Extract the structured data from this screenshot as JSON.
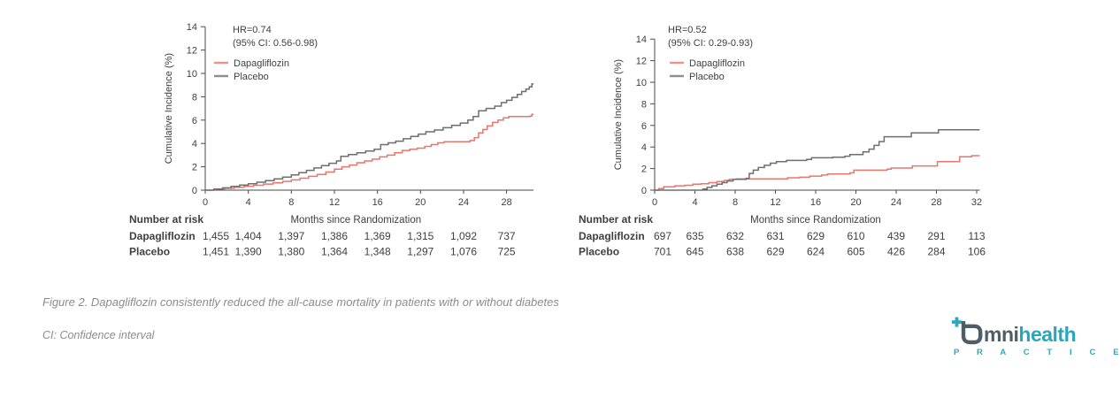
{
  "caption": "Figure 2. Dapagliflozin consistently reduced the all-cause mortality in patients with or without diabetes",
  "footnote": "CI: Confidence interval",
  "logo": {
    "plus_icon": "plus-icon",
    "o_mark_icon": "omni-o-mark-icon",
    "brand_prefix": "mni",
    "brand_suffix": "health",
    "subtext": "P R A C T I C E",
    "dark_color": "#4e5d66",
    "teal_color": "#29a7b7"
  },
  "colors": {
    "axis": "#4a4a4a",
    "text_dark": "#3f3f3f",
    "series_red": "#e7766d",
    "series_gray": "#6e6e6e",
    "legend_red": "#f0928a",
    "legend_gray": "#8d8d8d",
    "caption_gray": "#8c8c8c"
  },
  "chart_data": [
    {
      "type": "line",
      "step": true,
      "hr_text": "HR=0.74",
      "ci_text": "(95% CI: 0.56-0.98)",
      "ylabel": "Cumulative Incidence (%)",
      "xlabel": "Months since Randomization",
      "yticks": [
        0,
        2,
        4,
        6,
        8,
        10,
        12,
        14
      ],
      "xticks": [
        0,
        4,
        8,
        12,
        16,
        20,
        24,
        28
      ],
      "ylim": [
        0,
        14
      ],
      "xlim": [
        0,
        30.5
      ],
      "grid": false,
      "legend_position": "upper-left",
      "series": [
        {
          "name": "Dapagliflozin",
          "color": "#e7766d",
          "points": [
            [
              0,
              0
            ],
            [
              0.9,
              0.08
            ],
            [
              1.8,
              0.16
            ],
            [
              2.7,
              0.25
            ],
            [
              3.6,
              0.33
            ],
            [
              4.5,
              0.42
            ],
            [
              5.4,
              0.52
            ],
            [
              6.3,
              0.63
            ],
            [
              7.2,
              0.75
            ],
            [
              8,
              0.88
            ],
            [
              8.8,
              1.02
            ],
            [
              9.6,
              1.18
            ],
            [
              10.4,
              1.35
            ],
            [
              11.2,
              1.55
            ],
            [
              12,
              1.8
            ],
            [
              12.7,
              2.0
            ],
            [
              13.4,
              2.15
            ],
            [
              14.1,
              2.35
            ],
            [
              14.8,
              2.5
            ],
            [
              15.5,
              2.65
            ],
            [
              16.2,
              2.85
            ],
            [
              16.9,
              3.0
            ],
            [
              17.6,
              3.2
            ],
            [
              18.3,
              3.4
            ],
            [
              19,
              3.5
            ],
            [
              19.7,
              3.6
            ],
            [
              20.4,
              3.75
            ],
            [
              21,
              3.9
            ],
            [
              21.6,
              4.05
            ],
            [
              22.2,
              4.15
            ],
            [
              24.6,
              4.25
            ],
            [
              25,
              4.5
            ],
            [
              25.4,
              4.9
            ],
            [
              25.8,
              5.2
            ],
            [
              26.2,
              5.5
            ],
            [
              26.7,
              5.8
            ],
            [
              27.2,
              6.0
            ],
            [
              27.7,
              6.2
            ],
            [
              28.2,
              6.3
            ],
            [
              30.2,
              6.35
            ],
            [
              30.35,
              6.5
            ]
          ]
        },
        {
          "name": "Placebo",
          "color": "#6e6e6e",
          "points": [
            [
              0,
              0
            ],
            [
              0.8,
              0.1
            ],
            [
              1.6,
              0.2
            ],
            [
              2.4,
              0.32
            ],
            [
              3.2,
              0.44
            ],
            [
              4,
              0.55
            ],
            [
              4.8,
              0.68
            ],
            [
              5.6,
              0.82
            ],
            [
              6.4,
              0.97
            ],
            [
              7.2,
              1.12
            ],
            [
              8,
              1.3
            ],
            [
              8.7,
              1.5
            ],
            [
              9.4,
              1.7
            ],
            [
              10.1,
              1.9
            ],
            [
              10.8,
              2.1
            ],
            [
              11.5,
              2.3
            ],
            [
              12.2,
              2.5
            ],
            [
              12.6,
              2.9
            ],
            [
              13.3,
              3.05
            ],
            [
              14.1,
              3.2
            ],
            [
              14.9,
              3.35
            ],
            [
              15.7,
              3.5
            ],
            [
              16.3,
              3.9
            ],
            [
              17,
              4.05
            ],
            [
              17.7,
              4.2
            ],
            [
              18.4,
              4.4
            ],
            [
              19.1,
              4.6
            ],
            [
              19.8,
              4.8
            ],
            [
              20.5,
              5.0
            ],
            [
              21.3,
              5.15
            ],
            [
              22.1,
              5.35
            ],
            [
              22.9,
              5.55
            ],
            [
              23.7,
              5.75
            ],
            [
              24.4,
              6.0
            ],
            [
              24.9,
              6.3
            ],
            [
              25.4,
              6.8
            ],
            [
              26.1,
              7.0
            ],
            [
              26.9,
              7.2
            ],
            [
              27.5,
              7.5
            ],
            [
              28,
              7.7
            ],
            [
              28.5,
              7.95
            ],
            [
              29,
              8.2
            ],
            [
              29.4,
              8.45
            ],
            [
              29.8,
              8.65
            ],
            [
              30.1,
              8.85
            ],
            [
              30.35,
              9.1
            ]
          ]
        }
      ],
      "risk_table": {
        "title": "Number at risk",
        "rows": [
          {
            "label": "Dapagliflozin",
            "values": [
              "1,455",
              "1,404",
              "1,397",
              "1,386",
              "1,369",
              "1,315",
              "1,092",
              "737"
            ]
          },
          {
            "label": "Placebo",
            "values": [
              "1,451",
              "1,390",
              "1,380",
              "1,364",
              "1,348",
              "1,297",
              "1,076",
              "725"
            ]
          }
        ]
      }
    },
    {
      "type": "line",
      "step": true,
      "hr_text": "HR=0.52",
      "ci_text": "(95% CI: 0.29-0.93)",
      "ylabel": "Cumulative Incidence (%)",
      "xlabel": "Months since Randomization",
      "yticks": [
        0,
        2,
        4,
        6,
        8,
        10,
        12,
        14
      ],
      "xticks": [
        0,
        4,
        8,
        12,
        16,
        20,
        24,
        28,
        32
      ],
      "ylim": [
        0,
        14
      ],
      "xlim": [
        0,
        32.3
      ],
      "grid": false,
      "legend_position": "upper-left",
      "series": [
        {
          "name": "Dapagliflozin",
          "color": "#e7766d",
          "points": [
            [
              0,
              0
            ],
            [
              0.4,
              0.15
            ],
            [
              0.9,
              0.3
            ],
            [
              2,
              0.4
            ],
            [
              3,
              0.45
            ],
            [
              3.8,
              0.55
            ],
            [
              4.6,
              0.6
            ],
            [
              5.4,
              0.7
            ],
            [
              6.2,
              0.8
            ],
            [
              6.9,
              0.9
            ],
            [
              7.4,
              1.0
            ],
            [
              8.1,
              1.05
            ],
            [
              13.2,
              1.15
            ],
            [
              14.4,
              1.2
            ],
            [
              15.4,
              1.3
            ],
            [
              16.6,
              1.4
            ],
            [
              17.2,
              1.5
            ],
            [
              19.4,
              1.6
            ],
            [
              19.8,
              1.85
            ],
            [
              23.1,
              1.95
            ],
            [
              23.5,
              2.05
            ],
            [
              25.6,
              2.25
            ],
            [
              28.1,
              2.65
            ],
            [
              30.3,
              3.1
            ],
            [
              31.5,
              3.2
            ]
          ]
        },
        {
          "name": "Placebo",
          "color": "#6e6e6e",
          "points": [
            [
              0,
              0
            ],
            [
              4.8,
              0.1
            ],
            [
              5.2,
              0.25
            ],
            [
              5.7,
              0.4
            ],
            [
              6.2,
              0.55
            ],
            [
              6.7,
              0.7
            ],
            [
              7.2,
              0.85
            ],
            [
              7.8,
              1.0
            ],
            [
              9.1,
              1.1
            ],
            [
              9.4,
              1.55
            ],
            [
              9.8,
              1.85
            ],
            [
              10.3,
              2.1
            ],
            [
              10.9,
              2.3
            ],
            [
              11.5,
              2.5
            ],
            [
              12.1,
              2.65
            ],
            [
              13.1,
              2.75
            ],
            [
              15.1,
              2.85
            ],
            [
              15.6,
              3.0
            ],
            [
              17.7,
              3.05
            ],
            [
              18.9,
              3.15
            ],
            [
              19.4,
              3.3
            ],
            [
              20.7,
              3.55
            ],
            [
              21.3,
              3.8
            ],
            [
              21.8,
              4.15
            ],
            [
              22.3,
              4.5
            ],
            [
              22.8,
              4.95
            ],
            [
              25.5,
              5.3
            ],
            [
              28.2,
              5.6
            ]
          ]
        }
      ],
      "risk_table": {
        "title": "Number at risk",
        "rows": [
          {
            "label": "Dapagliflozin",
            "values": [
              "697",
              "635",
              "632",
              "631",
              "629",
              "610",
              "439",
              "291",
              "113"
            ]
          },
          {
            "label": "Placebo",
            "values": [
              "701",
              "645",
              "638",
              "629",
              "624",
              "605",
              "426",
              "284",
              "106"
            ]
          }
        ]
      }
    }
  ]
}
